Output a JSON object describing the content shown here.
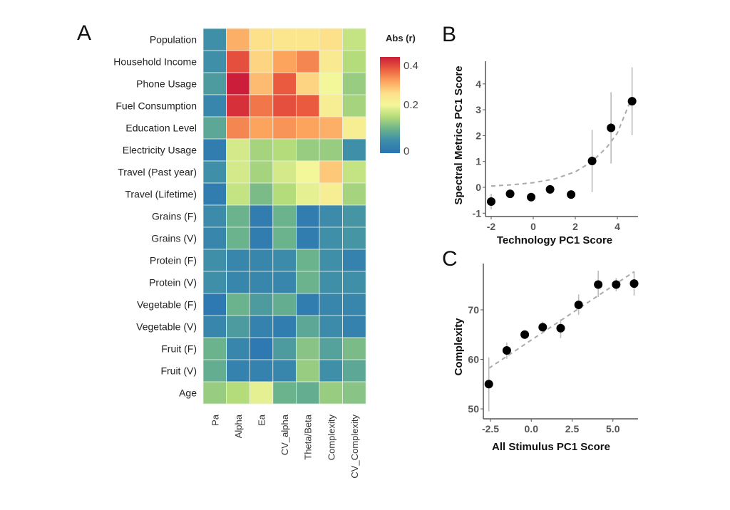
{
  "chart_data": [
    {
      "panel": "A",
      "type": "heatmap",
      "title": "",
      "legend_title": "Abs (r)",
      "legend_ticks": [
        "0",
        "0.2",
        "0.4"
      ],
      "legend_position": "top-right",
      "value_range": [
        0,
        0.42
      ],
      "rows": [
        "Population",
        "Household Income",
        "Phone Usage",
        "Fuel Consumption",
        "Education Level",
        "Electricity Usage",
        "Travel (Past year)",
        "Travel (Lifetime)",
        "Grains (F)",
        "Grains (V)",
        "Protein (F)",
        "Protein (V)",
        "Vegetable (F)",
        "Vegetable (V)",
        "Fruit (F)",
        "Fruit (V)",
        "Age"
      ],
      "columns": [
        "Pa",
        "Alpha",
        "Ea",
        "CV_alpha",
        "Theta/Beta",
        "Complexity",
        "CV_Complexity"
      ],
      "values": [
        [
          0.06,
          0.3,
          0.26,
          0.25,
          0.25,
          0.26,
          0.18
        ],
        [
          0.06,
          0.37,
          0.27,
          0.31,
          0.33,
          0.24,
          0.17
        ],
        [
          0.08,
          0.42,
          0.29,
          0.36,
          0.27,
          0.21,
          0.15
        ],
        [
          0.04,
          0.4,
          0.34,
          0.37,
          0.36,
          0.23,
          0.16
        ],
        [
          0.1,
          0.33,
          0.31,
          0.32,
          0.31,
          0.3,
          0.23
        ],
        [
          0.02,
          0.19,
          0.16,
          0.17,
          0.15,
          0.15,
          0.06
        ],
        [
          0.06,
          0.19,
          0.16,
          0.19,
          0.21,
          0.28,
          0.18
        ],
        [
          0.02,
          0.18,
          0.13,
          0.17,
          0.2,
          0.23,
          0.16
        ],
        [
          0.05,
          0.12,
          0.02,
          0.12,
          0.02,
          0.05,
          0.07
        ],
        [
          0.04,
          0.12,
          0.02,
          0.12,
          0.02,
          0.06,
          0.07
        ],
        [
          0.06,
          0.04,
          0.04,
          0.05,
          0.12,
          0.06,
          0.03
        ],
        [
          0.06,
          0.04,
          0.04,
          0.04,
          0.12,
          0.06,
          0.06
        ],
        [
          0.01,
          0.12,
          0.08,
          0.11,
          0.02,
          0.04,
          0.04
        ],
        [
          0.04,
          0.08,
          0.03,
          0.02,
          0.1,
          0.05,
          0.03
        ],
        [
          0.12,
          0.04,
          0.01,
          0.08,
          0.14,
          0.09,
          0.13
        ],
        [
          0.11,
          0.03,
          0.03,
          0.04,
          0.15,
          0.06,
          0.1
        ],
        [
          0.15,
          0.17,
          0.2,
          0.12,
          0.11,
          0.15,
          0.14
        ]
      ]
    },
    {
      "panel": "B",
      "type": "scatter",
      "xlabel": "Technology PC1 Score",
      "ylabel": "Spectral Metrics PC1 Score",
      "xlim": [
        -2.3,
        5.0
      ],
      "ylim": [
        -1.15,
        4.9
      ],
      "xticks": [
        -2,
        0,
        2,
        4
      ],
      "yticks": [
        -1,
        0,
        1,
        2,
        3,
        4
      ],
      "grid": false,
      "points": [
        {
          "x": -2.0,
          "y": -0.55,
          "lo": -0.85,
          "hi": -0.25
        },
        {
          "x": -1.1,
          "y": -0.25,
          "lo": -0.35,
          "hi": -0.15
        },
        {
          "x": -0.1,
          "y": -0.38,
          "lo": -0.45,
          "hi": -0.3
        },
        {
          "x": 0.8,
          "y": -0.08,
          "lo": -0.15,
          "hi": -0.01
        },
        {
          "x": 1.8,
          "y": -0.28,
          "lo": -0.35,
          "hi": -0.21
        },
        {
          "x": 2.8,
          "y": 1.02,
          "lo": -0.18,
          "hi": 2.22
        },
        {
          "x": 3.7,
          "y": 2.3,
          "lo": 0.92,
          "hi": 3.68
        },
        {
          "x": 4.7,
          "y": 3.33,
          "lo": 2.02,
          "hi": 4.64
        }
      ],
      "fit": {
        "style": "dashed",
        "kind": "exponential",
        "x": [
          -2.0,
          -1.0,
          0.0,
          1.0,
          2.0,
          2.8,
          3.5,
          4.0,
          4.6
        ],
        "y": [
          0.05,
          0.1,
          0.18,
          0.32,
          0.6,
          1.0,
          1.55,
          2.1,
          3.3
        ]
      }
    },
    {
      "panel": "C",
      "type": "scatter",
      "xlabel": "All Stimulus PC1 Score",
      "ylabel": "Complexity",
      "xlim": [
        -3.0,
        6.8
      ],
      "ylim": [
        49,
        79
      ],
      "xticks": [
        "-2.5",
        "0.0",
        "2.5",
        "5.0"
      ],
      "xtick_values": [
        -2.5,
        0.0,
        2.5,
        5.0
      ],
      "yticks": [
        50,
        60,
        70
      ],
      "grid": false,
      "points": [
        {
          "x": -2.6,
          "y": 55.0,
          "lo": 49.5,
          "hi": 60.4
        },
        {
          "x": -1.5,
          "y": 61.8,
          "lo": 60.1,
          "hi": 63.4
        },
        {
          "x": -0.4,
          "y": 65.0,
          "lo": 64.2,
          "hi": 65.8
        },
        {
          "x": 0.7,
          "y": 66.5,
          "lo": 65.4,
          "hi": 67.6
        },
        {
          "x": 1.8,
          "y": 66.3,
          "lo": 64.3,
          "hi": 68.1
        },
        {
          "x": 2.9,
          "y": 71.0,
          "lo": 69.0,
          "hi": 73.1
        },
        {
          "x": 4.1,
          "y": 75.1,
          "lo": 72.6,
          "hi": 77.9
        },
        {
          "x": 5.2,
          "y": 75.1,
          "lo": 73.8,
          "hi": 76.4
        },
        {
          "x": 6.3,
          "y": 75.3,
          "lo": 72.9,
          "hi": 77.8
        }
      ],
      "fit": {
        "style": "dashed",
        "kind": "linear",
        "x": [
          -2.6,
          6.3
        ],
        "y": [
          58.2,
          77.7
        ]
      }
    }
  ],
  "labels": {
    "panel_a": "A",
    "panel_b": "B",
    "panel_c": "C"
  }
}
